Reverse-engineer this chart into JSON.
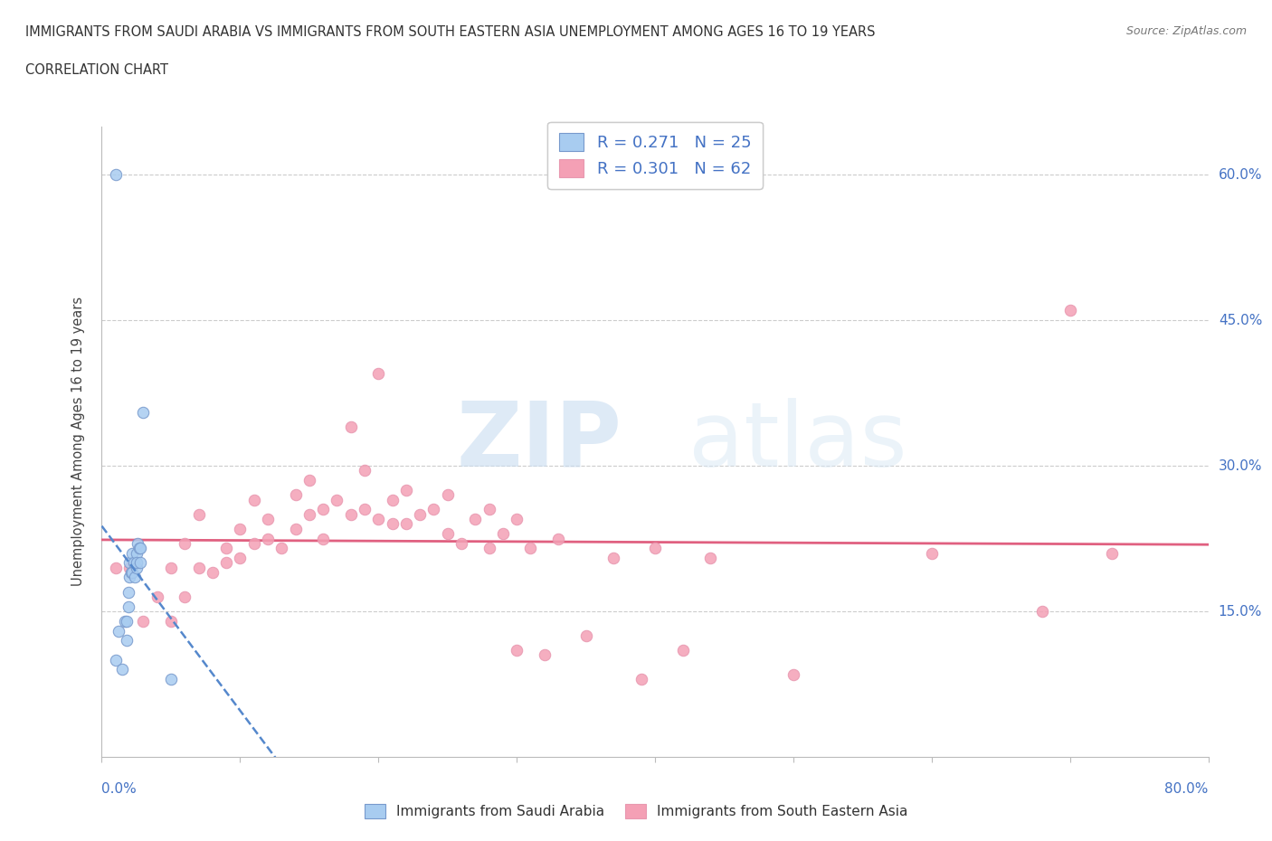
{
  "title_line1": "IMMIGRANTS FROM SAUDI ARABIA VS IMMIGRANTS FROM SOUTH EASTERN ASIA UNEMPLOYMENT AMONG AGES 16 TO 19 YEARS",
  "title_line2": "CORRELATION CHART",
  "source_text": "Source: ZipAtlas.com",
  "ylabel": "Unemployment Among Ages 16 to 19 years",
  "xlim": [
    0.0,
    0.8
  ],
  "ylim": [
    0.0,
    0.65
  ],
  "y_tick_positions": [
    0.15,
    0.3,
    0.45,
    0.6
  ],
  "y_tick_labels": [
    "15.0%",
    "30.0%",
    "45.0%",
    "60.0%"
  ],
  "legend_R1": "0.271",
  "legend_N1": "25",
  "legend_R2": "0.301",
  "legend_N2": "62",
  "color_saudi": "#A8CCF0",
  "color_sea": "#F4A0B5",
  "color_trendline_saudi": "#5588CC",
  "color_trendline_sea": "#E06080",
  "watermark_zip": "ZIP",
  "watermark_atlas": "atlas",
  "saudi_x": [
    0.01,
    0.01,
    0.012,
    0.015,
    0.017,
    0.018,
    0.018,
    0.019,
    0.019,
    0.02,
    0.02,
    0.021,
    0.022,
    0.022,
    0.023,
    0.024,
    0.025,
    0.025,
    0.025,
    0.026,
    0.027,
    0.028,
    0.028,
    0.03,
    0.05
  ],
  "saudi_y": [
    0.6,
    0.1,
    0.13,
    0.09,
    0.14,
    0.12,
    0.14,
    0.155,
    0.17,
    0.185,
    0.2,
    0.19,
    0.19,
    0.21,
    0.2,
    0.185,
    0.195,
    0.21,
    0.2,
    0.22,
    0.215,
    0.2,
    0.215,
    0.355,
    0.08
  ],
  "sea_x": [
    0.01,
    0.02,
    0.03,
    0.04,
    0.05,
    0.05,
    0.06,
    0.06,
    0.07,
    0.07,
    0.08,
    0.09,
    0.09,
    0.1,
    0.1,
    0.11,
    0.11,
    0.12,
    0.12,
    0.13,
    0.14,
    0.14,
    0.15,
    0.15,
    0.16,
    0.16,
    0.17,
    0.18,
    0.18,
    0.19,
    0.19,
    0.2,
    0.2,
    0.21,
    0.21,
    0.22,
    0.22,
    0.23,
    0.24,
    0.25,
    0.25,
    0.26,
    0.27,
    0.28,
    0.28,
    0.29,
    0.3,
    0.3,
    0.31,
    0.32,
    0.33,
    0.35,
    0.37,
    0.39,
    0.4,
    0.42,
    0.44,
    0.5,
    0.6,
    0.68,
    0.7,
    0.73
  ],
  "sea_y": [
    0.195,
    0.195,
    0.14,
    0.165,
    0.14,
    0.195,
    0.165,
    0.22,
    0.195,
    0.25,
    0.19,
    0.2,
    0.215,
    0.235,
    0.205,
    0.22,
    0.265,
    0.225,
    0.245,
    0.215,
    0.235,
    0.27,
    0.25,
    0.285,
    0.255,
    0.225,
    0.265,
    0.25,
    0.34,
    0.255,
    0.295,
    0.245,
    0.395,
    0.265,
    0.24,
    0.24,
    0.275,
    0.25,
    0.255,
    0.27,
    0.23,
    0.22,
    0.245,
    0.215,
    0.255,
    0.23,
    0.245,
    0.11,
    0.215,
    0.105,
    0.225,
    0.125,
    0.205,
    0.08,
    0.215,
    0.11,
    0.205,
    0.085,
    0.21,
    0.15,
    0.46,
    0.21
  ]
}
